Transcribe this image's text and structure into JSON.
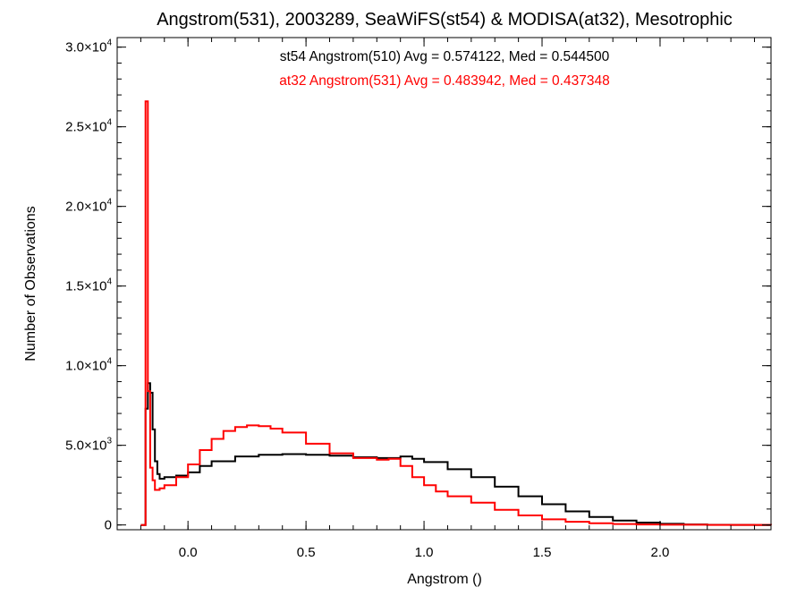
{
  "chart_data": {
    "type": "line",
    "title": "Angstrom(531), 2003289, SeaWiFS(st54) & MODISA(at32), Mesotrophic",
    "xlabel": "Angstrom ()",
    "ylabel": "Number of Observations",
    "xlim": [
      -0.3,
      2.47
    ],
    "ylim": [
      -300,
      30600
    ],
    "grid": false,
    "line_style": "histogram-step",
    "x_ticks": [
      {
        "value": 0.0,
        "label": "0.0"
      },
      {
        "value": 0.5,
        "label": "0.5"
      },
      {
        "value": 1.0,
        "label": "1.0"
      },
      {
        "value": 1.5,
        "label": "1.5"
      },
      {
        "value": 2.0,
        "label": "2.0"
      }
    ],
    "y_ticks": [
      {
        "value": 0,
        "mant": "0",
        "exp": ""
      },
      {
        "value": 5000,
        "mant": "5.0×10",
        "exp": "3"
      },
      {
        "value": 10000,
        "mant": "1.0×10",
        "exp": "4"
      },
      {
        "value": 15000,
        "mant": "1.5×10",
        "exp": "4"
      },
      {
        "value": 20000,
        "mant": "2.0×10",
        "exp": "4"
      },
      {
        "value": 25000,
        "mant": "2.5×10",
        "exp": "4"
      },
      {
        "value": 30000,
        "mant": "3.0×10",
        "exp": "4"
      }
    ],
    "series": [
      {
        "name": "st54",
        "color": "#000000",
        "annotation": "st54 Angstrom(510) Avg = 0.574122, Med = 0.544500",
        "x": [
          -0.2,
          -0.18,
          -0.17,
          -0.16,
          -0.15,
          -0.14,
          -0.13,
          -0.12,
          -0.1,
          -0.05,
          0.0,
          0.05,
          0.1,
          0.2,
          0.3,
          0.4,
          0.5,
          0.6,
          0.7,
          0.8,
          0.9,
          0.95,
          1.0,
          1.1,
          1.2,
          1.3,
          1.4,
          1.5,
          1.6,
          1.7,
          1.8,
          1.9,
          2.0,
          2.1,
          2.2,
          2.3,
          2.4,
          2.47
        ],
        "y": [
          0,
          7300,
          8900,
          8300,
          6000,
          4000,
          3200,
          2900,
          3000,
          3100,
          3300,
          3700,
          4000,
          4300,
          4400,
          4450,
          4400,
          4350,
          4250,
          4200,
          4300,
          4150,
          3950,
          3500,
          3000,
          2400,
          1800,
          1300,
          850,
          500,
          280,
          150,
          70,
          30,
          10,
          5,
          0,
          0
        ]
      },
      {
        "name": "at32",
        "color": "#ff0000",
        "annotation": "at32 Angstrom(531) Avg = 0.483942, Med = 0.437348",
        "x": [
          -0.2,
          -0.18,
          -0.17,
          -0.16,
          -0.15,
          -0.14,
          -0.12,
          -0.1,
          -0.05,
          0.0,
          0.05,
          0.1,
          0.15,
          0.2,
          0.25,
          0.3,
          0.35,
          0.4,
          0.5,
          0.6,
          0.7,
          0.8,
          0.85,
          0.9,
          0.95,
          1.0,
          1.05,
          1.1,
          1.2,
          1.3,
          1.4,
          1.5,
          1.6,
          1.7,
          1.8,
          1.9,
          2.0,
          2.2,
          2.47
        ],
        "y": [
          0,
          26600,
          8400,
          3600,
          2800,
          2200,
          2300,
          2500,
          3000,
          3800,
          4700,
          5400,
          5900,
          6150,
          6250,
          6200,
          6050,
          5800,
          5100,
          4500,
          4200,
          4100,
          4150,
          3700,
          3000,
          2500,
          2100,
          1800,
          1400,
          950,
          600,
          350,
          200,
          110,
          60,
          30,
          15,
          5,
          0
        ]
      }
    ]
  }
}
